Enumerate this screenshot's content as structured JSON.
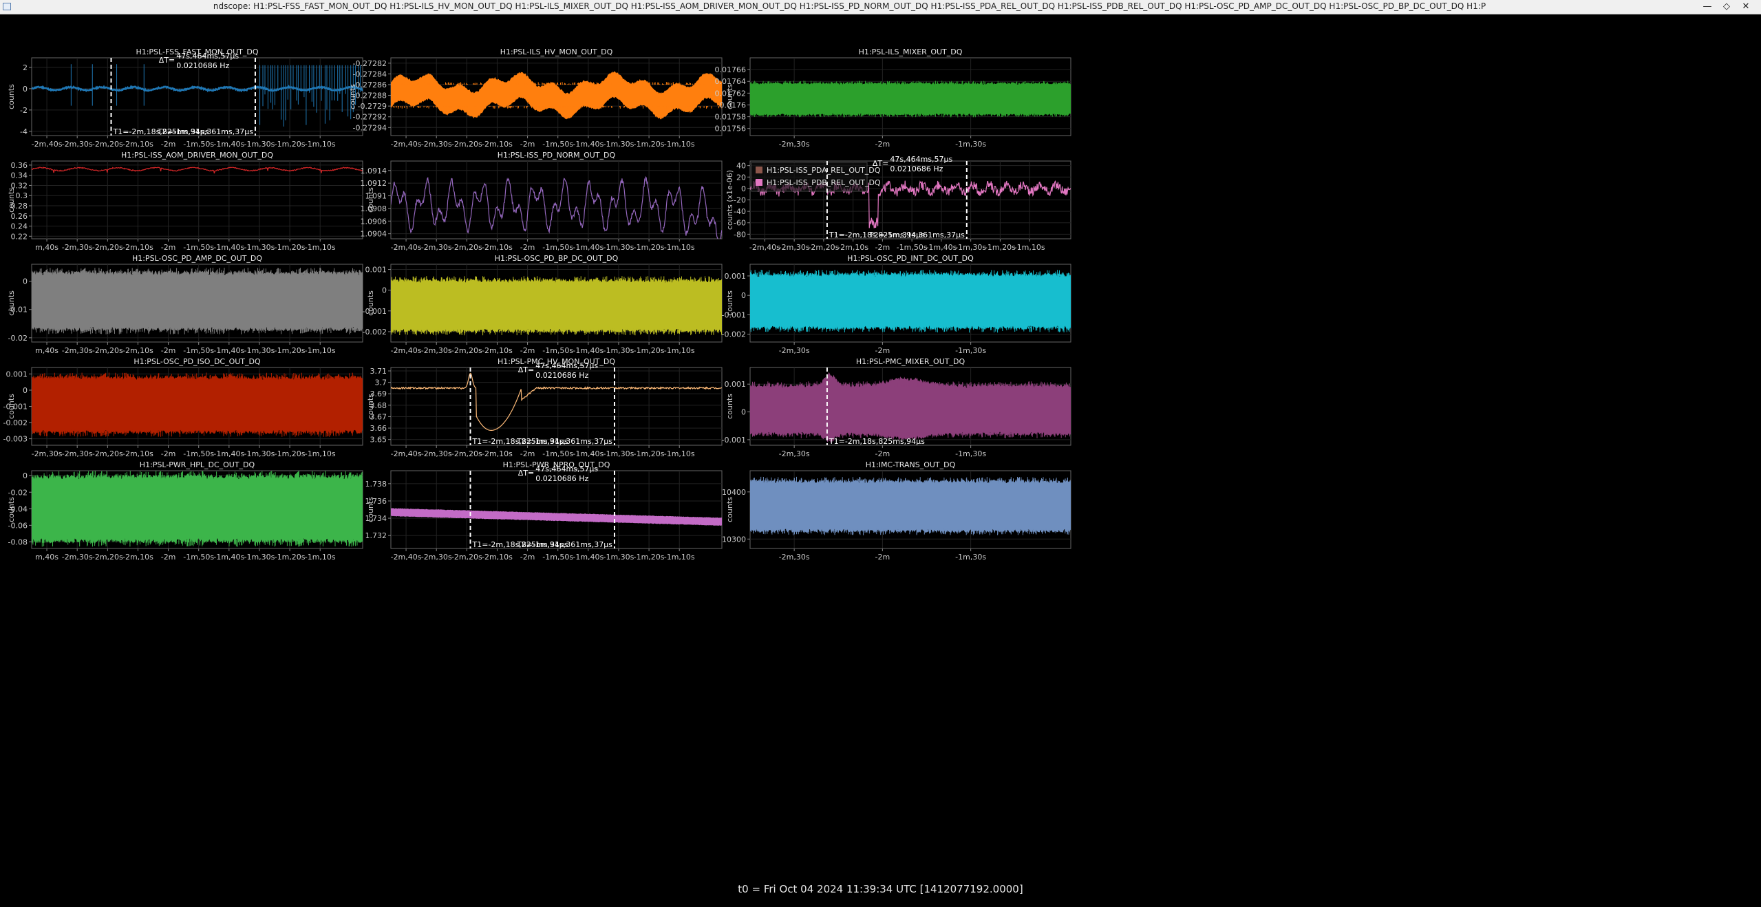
{
  "window": {
    "title": "ndscope: H1:PSL-FSS_FAST_MON_OUT_DQ H1:PSL-ILS_HV_MON_OUT_DQ H1:PSL-ILS_MIXER_OUT_DQ H1:PSL-ISS_AOM_DRIVER_MON_OUT_DQ H1:PSL-ISS_PD_NORM_OUT_DQ H1:PSL-ISS_PDA_REL_OUT_DQ H1:PSL-ISS_PDB_REL_OUT_DQ H1:PSL-OSC_PD_AMP_DC_OUT_DQ H1:PSL-OSC_PD_BP_DC_OUT_DQ H1:P",
    "minimize_icon": "minimize-icon",
    "maximize_icon": "maximize-icon",
    "close_icon": "close-icon"
  },
  "footer": {
    "t0": "t0 = Fri Oct 04 2024 11:39:34 UTC [1412077192.0000]"
  },
  "cursors": {
    "t1": "T1=-2m,18s,825ms,94μs",
    "t2": "T2=-1m,31s,361ms,37μs",
    "dt_label": "ΔT=",
    "dt_value": "47s,464ms,57μs",
    "dt_freq": "0.0210686 Hz"
  },
  "time_axis": {
    "min_seconds": -165,
    "max_seconds": -56,
    "ticks_dense": [
      {
        "t": -160,
        "label": "-2m,40s"
      },
      {
        "t": -150,
        "label": "-2m,30s"
      },
      {
        "t": -140,
        "label": "-2m,20s"
      },
      {
        "t": -130,
        "label": "-2m,10s"
      },
      {
        "t": -120,
        "label": "-2m"
      },
      {
        "t": -110,
        "label": "-1m,50s"
      },
      {
        "t": -100,
        "label": "-1m,40s"
      },
      {
        "t": -90,
        "label": "-1m,30s"
      },
      {
        "t": -80,
        "label": "-1m,20s"
      },
      {
        "t": -70,
        "label": "-1m,10s"
      }
    ],
    "ticks_sparse": [
      {
        "t": -150,
        "label": "-2m,30s"
      },
      {
        "t": -120,
        "label": "-2m"
      },
      {
        "t": -90,
        "label": "-1m,30s"
      }
    ]
  },
  "plots": [
    {
      "id": "fss-fast-mon",
      "title": "H1:PSL-FSS_FAST_MON_OUT_DQ",
      "ylabel": "counts",
      "color": "#1f77b4",
      "ticks": "dense",
      "first_tick_label": "-2m,40s",
      "yticks": [
        [
          "2",
          2
        ],
        [
          "0",
          0
        ],
        [
          "-2",
          -2
        ],
        [
          "-4",
          -4
        ]
      ],
      "ylim": [
        -4.4,
        2.9
      ],
      "cursors": "both",
      "show_dt": true,
      "chart_data": {
        "type": "line",
        "x_range_s": [
          -165,
          -56
        ],
        "trace": "baseline ~0 with spikes to about -3.8 after t=-90s",
        "baseline": 0.0,
        "min": -3.8,
        "max": 2.4
      }
    },
    {
      "id": "ils-hv-mon",
      "title": "H1:PSL-ILS_HV_MON_OUT_DQ",
      "ylabel": "counts",
      "color": "#ff7f0e",
      "ticks": "dense",
      "first_tick_label": "-2m,40s",
      "yticks": [
        [
          "-0.27282",
          -0.27282
        ],
        [
          "-0.27284",
          -0.27284
        ],
        [
          "-0.27286",
          -0.27286
        ],
        [
          "-0.27288",
          -0.27288
        ],
        [
          "-0.2729",
          -0.2729
        ],
        [
          "-0.27292",
          -0.27292
        ],
        [
          "-0.27294",
          -0.27294
        ]
      ],
      "ylim": [
        -0.272955,
        -0.27281
      ],
      "cursors": "none",
      "show_dt": false,
      "chart_data": {
        "type": "area",
        "x_range_s": [
          -165,
          -56
        ],
        "center": -0.27288,
        "band": 4e-05
      }
    },
    {
      "id": "ils-mixer",
      "title": "H1:PSL-ILS_MIXER_OUT_DQ",
      "ylabel": "counts",
      "color": "#2ca02c",
      "ticks": "sparse",
      "first_tick_label": "-2m,30s",
      "yticks": [
        [
          "0.01766",
          0.01766
        ],
        [
          "0.01764",
          0.01764
        ],
        [
          "0.01762",
          0.01762
        ],
        [
          "0.0176",
          0.0176
        ],
        [
          "0.01758",
          0.01758
        ],
        [
          "0.01756",
          0.01756
        ]
      ],
      "ylim": [
        0.017548,
        0.01768
      ],
      "cursors": "none",
      "show_dt": false,
      "chart_data": {
        "type": "area",
        "x_range_s": [
          -165,
          -56
        ],
        "center": 0.01761,
        "band": 5e-05
      }
    },
    {
      "id": "iss-aom-driver",
      "title": "H1:PSL-ISS_AOM_DRIVER_MON_OUT_DQ",
      "ylabel": "counts",
      "color": "#d62728",
      "ticks": "dense",
      "first_tick_label": "m,40s",
      "yticks": [
        [
          "0.36",
          0.36
        ],
        [
          "0.34",
          0.34
        ],
        [
          "0.32",
          0.32
        ],
        [
          "0.3",
          0.3
        ],
        [
          "0.28",
          0.28
        ],
        [
          "0.26",
          0.26
        ],
        [
          "0.24",
          0.24
        ],
        [
          "0.22",
          0.22
        ]
      ],
      "ylim": [
        0.215,
        0.368
      ],
      "cursors": "none",
      "show_dt": false,
      "chart_data": {
        "type": "line",
        "x_range_s": [
          -165,
          -56
        ],
        "baseline": 0.352,
        "range": [
          0.345,
          0.357
        ]
      }
    },
    {
      "id": "iss-pd-norm",
      "title": "H1:PSL-ISS_PD_NORM_OUT_DQ",
      "ylabel": "counts",
      "color": "#9467bd",
      "ticks": "dense",
      "first_tick_label": "-2m,40s",
      "yticks": [
        [
          "1.0914",
          1.0914
        ],
        [
          "1.0912",
          1.0912
        ],
        [
          "1.091",
          1.091
        ],
        [
          "1.0908",
          1.0908
        ],
        [
          "1.0906",
          1.0906
        ],
        [
          "1.0904",
          1.0904
        ]
      ],
      "ylim": [
        1.09032,
        1.09155
      ],
      "cursors": "none",
      "show_dt": false,
      "chart_data": {
        "type": "line",
        "x_range_s": [
          -165,
          -56
        ],
        "range": [
          1.09035,
          1.09147
        ]
      }
    },
    {
      "id": "iss-pda-pdb-rel",
      "title": "",
      "ylabel": "counts (x1e-06)",
      "color": "#e377c2",
      "ticks": "dense",
      "first_tick_label": "-2m,40s",
      "yticks": [
        [
          "40",
          40
        ],
        [
          "20",
          20
        ],
        [
          "0",
          0
        ],
        [
          "-20",
          -20
        ],
        [
          "-40",
          -40
        ],
        [
          "-60",
          -60
        ],
        [
          "-80",
          -80
        ]
      ],
      "ylim": [
        -88,
        48
      ],
      "cursors": "both",
      "show_dt": true,
      "legend": [
        {
          "name": "H1:PSL-ISS_PDA_REL_OUT_DQ",
          "color": "#8c564b"
        },
        {
          "name": "H1:PSL-ISS_PDB_REL_OUT_DQ",
          "color": "#e377c2"
        }
      ],
      "chart_data": {
        "type": "line",
        "x_range_s": [
          -165,
          -56
        ],
        "series": [
          {
            "name": "H1:PSL-ISS_PDB_REL_OUT_DQ",
            "baseline": 0,
            "min": -75,
            "max": 25
          }
        ]
      }
    },
    {
      "id": "osc-pd-amp-dc",
      "title": "H1:PSL-OSC_PD_AMP_DC_OUT_DQ",
      "ylabel": "counts",
      "color": "#7f7f7f",
      "ticks": "dense",
      "first_tick_label": "m,40s",
      "yticks": [
        [
          "0",
          0
        ],
        [
          "-0.01",
          -0.01
        ],
        [
          "-0.02",
          -0.02
        ]
      ],
      "ylim": [
        -0.0215,
        0.006
      ],
      "cursors": "none",
      "show_dt": false,
      "chart_data": {
        "type": "area",
        "x_range_s": [
          -165,
          -56
        ],
        "band": [
          -0.0165,
          0.0025
        ]
      }
    },
    {
      "id": "osc-pd-bp-dc",
      "title": "H1:PSL-OSC_PD_BP_DC_OUT_DQ",
      "ylabel": "counts",
      "color": "#bcbd22",
      "ticks": "dense",
      "first_tick_label": "-2m,40s",
      "yticks": [
        [
          "0.001",
          0.001
        ],
        [
          "0",
          0
        ],
        [
          "-0.001",
          -0.001
        ],
        [
          "-0.002",
          -0.002
        ]
      ],
      "ylim": [
        -0.0025,
        0.00125
      ],
      "cursors": "none",
      "show_dt": false,
      "chart_data": {
        "type": "area",
        "x_range_s": [
          -165,
          -56
        ],
        "band": [
          -0.0019,
          0.0004
        ]
      }
    },
    {
      "id": "osc-pd-int-dc",
      "title": "H1:PSL-OSC_PD_INT_DC_OUT_DQ",
      "ylabel": "counts",
      "color": "#17becf",
      "ticks": "sparse",
      "first_tick_label": "-2m,30s",
      "yticks": [
        [
          "0.001",
          0.001
        ],
        [
          "0",
          0
        ],
        [
          "-0.001",
          -0.001
        ],
        [
          "-0.002",
          -0.002
        ]
      ],
      "ylim": [
        -0.0024,
        0.0016
      ],
      "cursors": "none",
      "show_dt": false,
      "chart_data": {
        "type": "area",
        "x_range_s": [
          -165,
          -56
        ],
        "band": [
          -0.0016,
          0.001
        ]
      }
    },
    {
      "id": "osc-pd-iso-dc",
      "title": "H1:PSL-OSC_PD_ISO_DC_OUT_DQ",
      "ylabel": "counts",
      "color": "#b22000",
      "ticks": "dense",
      "first_tick_label": "-2m,30s",
      "yticks": [
        [
          "0.001",
          0.001
        ],
        [
          "0",
          0
        ],
        [
          "-0.001",
          -0.001
        ],
        [
          "-0.002",
          -0.002
        ],
        [
          "-0.003",
          -0.003
        ]
      ],
      "ylim": [
        -0.0034,
        0.0014
      ],
      "cursors": "none",
      "show_dt": false,
      "chart_data": {
        "type": "area",
        "x_range_s": [
          -165,
          -56
        ],
        "band": [
          -0.0025,
          0.0007
        ]
      }
    },
    {
      "id": "pmc-hv-mon",
      "title": "H1:PSL-PMC_HV_MON_OUT_DQ",
      "ylabel": "counts",
      "color": "#ffbb78",
      "ticks": "dense",
      "first_tick_label": "-2m,40s",
      "yticks": [
        [
          "3.71",
          3.71
        ],
        [
          "3.7",
          3.7
        ],
        [
          "3.69",
          3.69
        ],
        [
          "3.68",
          3.68
        ],
        [
          "3.67",
          3.67
        ],
        [
          "3.66",
          3.66
        ],
        [
          "3.65",
          3.65
        ]
      ],
      "ylim": [
        3.645,
        3.713
      ],
      "cursors": "both",
      "show_dt": true,
      "chart_data": {
        "type": "line",
        "x_range_s": [
          -165,
          -56
        ],
        "baseline": 3.695,
        "dip_min": 3.658,
        "dip_t": -132,
        "peak": 3.708,
        "peak_t": -138.8
      }
    },
    {
      "id": "pmc-mixer",
      "title": "H1:PSL-PMC_MIXER_OUT_DQ",
      "ylabel": "counts",
      "color": "#8c3f7a",
      "ticks": "sparse",
      "first_tick_label": "-2m,30s",
      "yticks": [
        [
          "0.001",
          0.001
        ],
        [
          "0",
          0
        ],
        [
          "-0.001",
          -0.001
        ]
      ],
      "ylim": [
        -0.0012,
        0.0016
      ],
      "cursors": "t1",
      "show_dt": false,
      "chart_data": {
        "type": "area",
        "x_range_s": [
          -165,
          -56
        ],
        "band": [
          -0.00075,
          0.0009
        ]
      }
    },
    {
      "id": "pwr-hpl-dc",
      "title": "H1:PSL-PWR_HPL_DC_OUT_DQ",
      "ylabel": "counts",
      "color": "#3cb54a",
      "ticks": "dense",
      "first_tick_label": "m,40s",
      "yticks": [
        [
          "0",
          0
        ],
        [
          "-0.02",
          -0.02
        ],
        [
          "-0.04",
          -0.04
        ],
        [
          "-0.06",
          -0.06
        ],
        [
          "-0.08",
          -0.08
        ]
      ],
      "ylim": [
        -0.088,
        0.006
      ],
      "cursors": "none",
      "show_dt": false,
      "chart_data": {
        "type": "area",
        "x_range_s": [
          -165,
          -56
        ],
        "band": [
          -0.077,
          -0.003
        ]
      }
    },
    {
      "id": "pwr-npro",
      "title": "H1:PSL-PWR_NPRO_OUT_DQ",
      "ylabel": "counts",
      "color": "#c36bc6",
      "ticks": "dense",
      "first_tick_label": "-2m,40s",
      "yticks": [
        [
          "1.738",
          1.738
        ],
        [
          "1.736",
          1.736
        ],
        [
          "1.734",
          1.734
        ],
        [
          "1.732",
          1.732
        ]
      ],
      "ylim": [
        1.7305,
        1.7395
      ],
      "cursors": "both",
      "show_dt": true,
      "chart_data": {
        "type": "area",
        "x_range_s": [
          -165,
          -56
        ],
        "start": 1.7347,
        "end": 1.7336
      }
    },
    {
      "id": "imc-trans",
      "title": "H1:IMC-TRANS_OUT_DQ",
      "ylabel": "counts",
      "color": "#6f8fbf",
      "ticks": "sparse",
      "first_tick_label": "-2m,30s",
      "yticks": [
        [
          "10400",
          10400
        ],
        [
          "10300",
          10300
        ]
      ],
      "ylim": [
        10280,
        10445
      ],
      "cursors": "none",
      "show_dt": false,
      "chart_data": {
        "type": "area",
        "x_range_s": [
          -165,
          -56
        ],
        "band": [
          10320,
          10420
        ]
      }
    }
  ]
}
